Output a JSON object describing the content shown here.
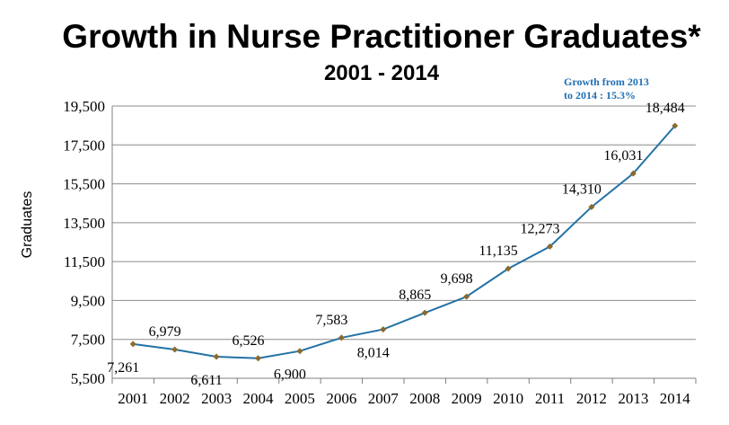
{
  "chart_data": {
    "type": "line",
    "title": "Growth in Nurse Practitioner Graduates*",
    "subtitle": "2001 - 2014",
    "ylabel": "Graduates",
    "xlabel": "",
    "annotation": [
      "Growth from 2013",
      "to 2014 : 15.3%"
    ],
    "categories": [
      "2001",
      "2002",
      "2003",
      "2004",
      "2005",
      "2006",
      "2007",
      "2008",
      "2009",
      "2010",
      "2011",
      "2012",
      "2013",
      "2014"
    ],
    "series": [
      {
        "values": [
          7261,
          6979,
          6611,
          6526,
          6900,
          7583,
          8014,
          8865,
          9698,
          11135,
          12273,
          14310,
          16031,
          18484
        ],
        "labels": [
          "7,261",
          "6,979",
          "6,611",
          "6,526",
          "6,900",
          "7,583",
          "8,014",
          "8,865",
          "9,698",
          "11,135",
          "12,273",
          "14,310",
          "16,031",
          "18,484"
        ],
        "label_side": [
          "below",
          "above",
          "below",
          "above",
          "below",
          "above",
          "below",
          "above",
          "above",
          "above",
          "above",
          "above",
          "above",
          "above"
        ]
      }
    ],
    "yticks": [
      5500,
      7500,
      9500,
      11500,
      13500,
      15500,
      17500,
      19500
    ],
    "ytick_labels": [
      "5,500",
      "7,500",
      "9,500",
      "11,500",
      "13,500",
      "15,500",
      "17,500",
      "19,500"
    ],
    "ylim": [
      5500,
      19500
    ],
    "grid": true,
    "line_color": "#2372a6",
    "marker_color": "#8b6a2b",
    "grid_color": "#8c8c8c",
    "annotation_color": "#1f6fb2"
  }
}
